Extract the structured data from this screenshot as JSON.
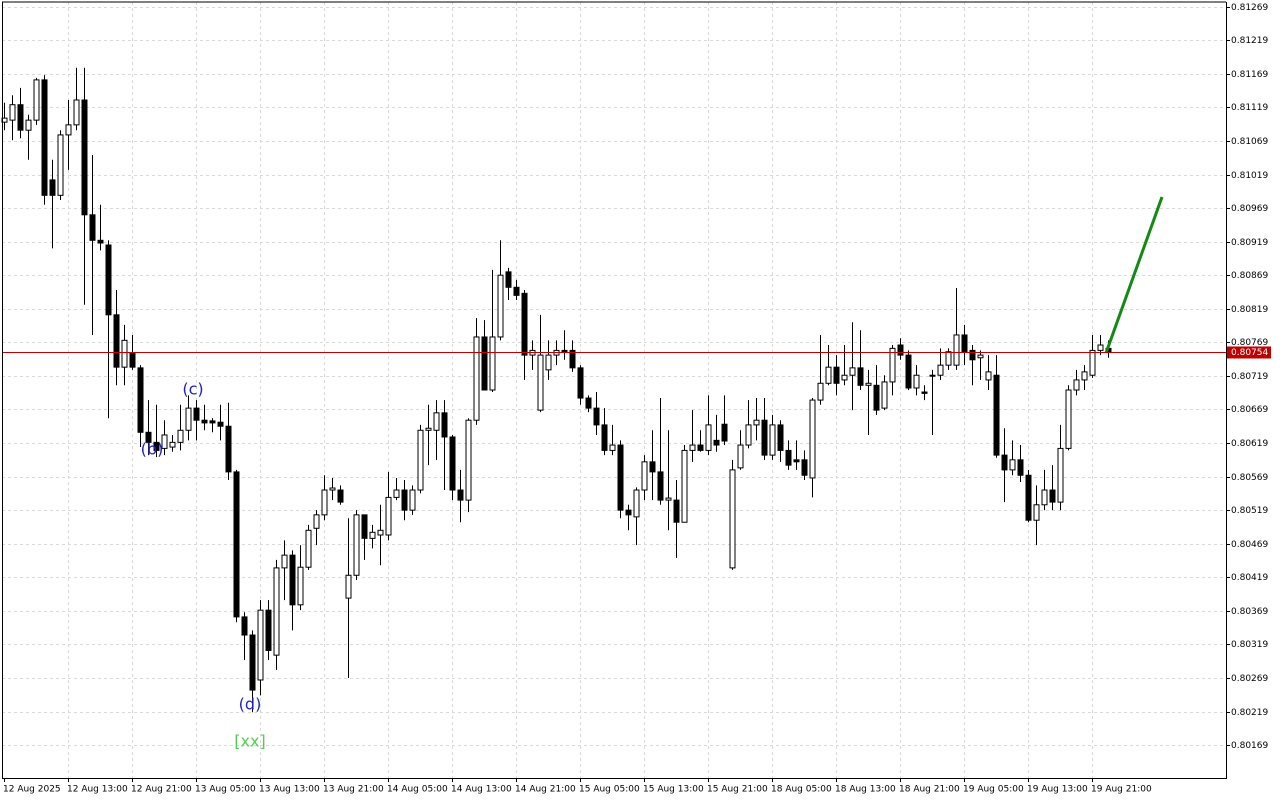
{
  "chart_data": {
    "type": "candlestick",
    "categories": [
      "12 Aug 2025",
      null,
      null,
      null,
      null,
      null,
      null,
      null,
      "12 Aug 13:00",
      null,
      null,
      null,
      null,
      null,
      null,
      null,
      "12 Aug 21:00",
      null,
      null,
      null,
      null,
      null,
      null,
      null,
      "13 Aug 05:00",
      null,
      null,
      null,
      null,
      null,
      null,
      null,
      "13 Aug 13:00",
      null,
      null,
      null,
      null,
      null,
      null,
      null,
      "13 Aug 21:00",
      null,
      null,
      null,
      null,
      null,
      null,
      null,
      "14 Aug 05:00",
      null,
      null,
      null,
      null,
      null,
      null,
      null,
      "14 Aug 13:00",
      null,
      null,
      null,
      null,
      null,
      null,
      null,
      "14 Aug 21:00",
      null,
      null,
      null,
      null,
      null,
      null,
      null,
      "15 Aug 05:00",
      null,
      null,
      null,
      null,
      null,
      null,
      null,
      "15 Aug 13:00",
      null,
      null,
      null,
      null,
      null,
      null,
      null,
      "15 Aug 21:00",
      null,
      null,
      null,
      null,
      null,
      null,
      null,
      "18 Aug 05:00",
      null,
      null,
      null,
      null,
      null,
      null,
      null,
      "18 Aug 13:00",
      null,
      null,
      null,
      null,
      null,
      null,
      null,
      "18 Aug 21:00",
      null,
      null,
      null,
      null,
      null,
      null,
      null,
      "19 Aug 05:00",
      null,
      null,
      null,
      null,
      null,
      null,
      null,
      "19 Aug 13:00",
      null,
      null,
      null,
      null,
      null,
      null,
      null,
      "19 Aug 21:00",
      null,
      null
    ],
    "open": [
      0.81097,
      0.811,
      0.81123,
      0.81085,
      0.811,
      0.8116,
      0.81011,
      0.80988,
      0.81078,
      0.81093,
      0.8113,
      0.80959,
      0.80921,
      0.80914,
      0.8081,
      0.80732,
      0.80753,
      0.80731,
      0.80635,
      0.8062,
      0.80611,
      0.80613,
      0.8062,
      0.80638,
      0.80671,
      0.80653,
      0.80652,
      0.8065,
      0.80644,
      0.80576,
      0.8036,
      0.80333,
      0.80266,
      0.8037,
      0.80303,
      0.80433,
      0.80452,
      0.80378,
      0.80434,
      0.80492,
      0.80512,
      0.80549,
      0.80549,
      0.80388,
      0.80422,
      0.80512,
      0.80477,
      0.80482,
      0.80482,
      0.80538,
      0.80549,
      0.80519,
      0.80549,
      0.80638,
      0.80638,
      0.80664,
      0.80628,
      0.80549,
      0.80534,
      0.80653,
      0.80777,
      0.80698,
      0.80777,
      0.80874,
      0.80851,
      0.80842,
      0.8075,
      0.80668,
      0.80728,
      0.8075,
      0.80757,
      0.80757,
      0.80731,
      0.80686,
      0.80671,
      0.80646,
      0.80608,
      0.80616,
      0.80519,
      0.80509,
      0.80549,
      0.80591,
      0.80576,
      0.80534,
      0.80534,
      0.80501,
      0.80608,
      0.80616,
      0.80608,
      0.80623,
      0.80647,
      0.80433,
      0.80582,
      0.80616,
      0.80646,
      0.80653,
      0.80601,
      0.80646,
      0.80608,
      0.80594,
      0.80594,
      0.80567,
      0.80683,
      0.80708,
      0.80732,
      0.80713,
      0.8072,
      0.80731,
      0.80705,
      0.80705,
      0.80671,
      0.8071,
      0.80765,
      0.8075,
      0.80701,
      0.80695,
      0.8072,
      0.8072,
      0.80735,
      0.80735,
      0.8078,
      0.80757,
      0.80746,
      0.80713,
      0.8072,
      0.80601,
      0.80579,
      0.80594,
      0.80571,
      0.80504,
      0.80527,
      0.80549,
      0.80531,
      0.80611,
      0.80698,
      0.80713,
      0.8072,
      0.80757,
      0.8076
    ],
    "high": [
      0.81126,
      0.81137,
      0.81148,
      0.81108,
      0.81163,
      0.81167,
      0.81041,
      0.81085,
      0.8113,
      0.81178,
      0.81178,
      0.81048,
      0.80974,
      0.80921,
      0.80847,
      0.80795,
      0.8078,
      0.80735,
      0.80683,
      0.80676,
      0.80653,
      0.80631,
      0.80676,
      0.8069,
      0.80683,
      0.80676,
      0.80656,
      0.80676,
      0.80679,
      0.80579,
      0.80367,
      0.8034,
      0.80385,
      0.80385,
      0.80445,
      0.80474,
      0.80459,
      0.80467,
      0.80497,
      0.80519,
      0.80571,
      0.80567,
      0.80556,
      0.80507,
      0.80519,
      0.80512,
      0.80497,
      0.80527,
      0.80576,
      0.80567,
      0.80564,
      0.80556,
      0.80646,
      0.80676,
      0.80683,
      0.80683,
      0.80631,
      0.80579,
      0.80656,
      0.80805,
      0.80802,
      0.80877,
      0.80921,
      0.8088,
      0.80862,
      0.80847,
      0.80772,
      0.8081,
      0.80772,
      0.80772,
      0.80787,
      0.80772,
      0.80735,
      0.8069,
      0.80695,
      0.80671,
      0.80646,
      0.80623,
      0.80527,
      0.80553,
      0.80601,
      0.80638,
      0.80686,
      0.80638,
      0.80564,
      0.80616,
      0.80668,
      0.80638,
      0.8069,
      0.80661,
      0.8069,
      0.80594,
      0.80638,
      0.80683,
      0.80686,
      0.80686,
      0.80661,
      0.80653,
      0.80623,
      0.80623,
      0.80608,
      0.80686,
      0.8078,
      0.80765,
      0.8075,
      0.80765,
      0.80799,
      0.80787,
      0.80728,
      0.80735,
      0.8072,
      0.80765,
      0.80775,
      0.80757,
      0.80735,
      0.80705,
      0.80728,
      0.8076,
      0.8076,
      0.8085,
      0.80795,
      0.80765,
      0.80757,
      0.8075,
      0.8075,
      0.80641,
      0.80623,
      0.80616,
      0.80579,
      0.80556,
      0.80579,
      0.80586,
      0.80646,
      0.80705,
      0.80728,
      0.80735,
      0.8078,
      0.8078,
      0.80772
    ],
    "low": [
      0.81085,
      0.8107,
      0.81073,
      0.81041,
      0.81093,
      0.80974,
      0.80909,
      0.80981,
      0.81026,
      0.81085,
      0.80825,
      0.8078,
      0.80906,
      0.80656,
      0.80705,
      0.80705,
      0.80728,
      0.80613,
      0.80601,
      0.80598,
      0.80601,
      0.80606,
      0.80608,
      0.80623,
      0.80623,
      0.80638,
      0.80635,
      0.80623,
      0.80564,
      0.80352,
      0.80296,
      0.80218,
      0.80243,
      0.80296,
      0.80281,
      0.80385,
      0.8034,
      0.8037,
      0.8043,
      0.80467,
      0.80504,
      0.80534,
      0.80527,
      0.80269,
      0.80415,
      0.80445,
      0.80462,
      0.80437,
      0.80474,
      0.80534,
      0.80504,
      0.80512,
      0.80544,
      0.80586,
      0.80594,
      0.80549,
      0.80534,
      0.80501,
      0.80516,
      0.80646,
      0.80698,
      0.80695,
      0.80772,
      0.80832,
      0.80832,
      0.80713,
      0.80728,
      0.80665,
      0.80713,
      0.80735,
      0.80743,
      0.80725,
      0.80676,
      0.80665,
      0.80631,
      0.80601,
      0.80601,
      0.80507,
      0.80489,
      0.80467,
      0.80534,
      0.80534,
      0.80527,
      0.80489,
      0.80448,
      0.80501,
      0.80591,
      0.80606,
      0.80601,
      0.80606,
      0.80616,
      0.8043,
      0.80579,
      0.80611,
      0.80623,
      0.80594,
      0.80594,
      0.80591,
      0.80579,
      0.80579,
      0.80564,
      0.80538,
      0.80676,
      0.80705,
      0.8069,
      0.80705,
      0.80668,
      0.80698,
      0.80631,
      0.80661,
      0.80668,
      0.8069,
      0.80743,
      0.80698,
      0.8069,
      0.80683,
      0.80631,
      0.80713,
      0.80728,
      0.80728,
      0.80735,
      0.80705,
      0.80713,
      0.80698,
      0.80597,
      0.80531,
      0.80571,
      0.80561,
      0.80501,
      0.80467,
      0.80519,
      0.80519,
      0.80519,
      0.80608,
      0.8069,
      0.80698,
      0.80716,
      0.8075,
      0.80746
    ],
    "close": [
      0.81103,
      0.81123,
      0.81085,
      0.811,
      0.8116,
      0.80988,
      0.80988,
      0.81078,
      0.81093,
      0.8113,
      0.80959,
      0.80921,
      0.80917,
      0.8081,
      0.80732,
      0.80772,
      0.80732,
      0.80635,
      0.8062,
      0.80608,
      0.80631,
      0.8062,
      0.80638,
      0.80671,
      0.80653,
      0.80649,
      0.80649,
      0.80644,
      0.80576,
      0.8036,
      0.80333,
      0.80251,
      0.8037,
      0.8031,
      0.80433,
      0.80452,
      0.80378,
      0.80434,
      0.80489,
      0.80512,
      0.80549,
      0.80552,
      0.80531,
      0.80422,
      0.80512,
      0.80477,
      0.80486,
      0.80489,
      0.80538,
      0.80549,
      0.80519,
      0.80549,
      0.80638,
      0.80641,
      0.80664,
      0.80628,
      0.80549,
      0.80534,
      0.80653,
      0.80777,
      0.80698,
      0.80777,
      0.80869,
      0.80851,
      0.80839,
      0.8075,
      0.80757,
      0.8075,
      0.8075,
      0.80757,
      0.80755,
      0.80731,
      0.80686,
      0.80671,
      0.80646,
      0.80608,
      0.80616,
      0.80519,
      0.80512,
      0.80549,
      0.80591,
      0.80576,
      0.80534,
      0.80537,
      0.80501,
      0.80608,
      0.80616,
      0.80608,
      0.80646,
      0.80616,
      0.80622,
      0.80579,
      0.80616,
      0.80646,
      0.80653,
      0.80601,
      0.80646,
      0.80608,
      0.80586,
      0.80591,
      0.80571,
      0.80683,
      0.80708,
      0.80732,
      0.80708,
      0.8072,
      0.80731,
      0.80705,
      0.80708,
      0.80668,
      0.8071,
      0.8076,
      0.8075,
      0.80701,
      0.8072,
      0.80693,
      0.80719,
      0.80735,
      0.80755,
      0.8078,
      0.80755,
      0.80743,
      0.8075,
      0.80725,
      0.80601,
      0.80579,
      0.80594,
      0.80571,
      0.80504,
      0.80527,
      0.80549,
      0.80531,
      0.80611,
      0.80698,
      0.80713,
      0.80725,
      0.80757,
      0.80765,
      0.80754
    ],
    "bull_color": "#ffffff",
    "bear_color": "#000000",
    "ylim": [
      0.8012,
      0.81276
    ],
    "yticks": [
      0.80169,
      0.80219,
      0.80269,
      0.80319,
      0.80369,
      0.80419,
      0.80469,
      0.80519,
      0.80569,
      0.80619,
      0.80669,
      0.80719,
      0.80769,
      0.80819,
      0.80869,
      0.80919,
      0.80969,
      0.81019,
      0.81069,
      0.81119,
      0.81169,
      0.81219,
      0.81269
    ],
    "grid": true,
    "current_price": 0.80754,
    "current_price_color": "#c00000",
    "annotations": [
      {
        "text": "(b)",
        "color": "#2222cc"
      },
      {
        "text": "(c)",
        "color": "#2222cc"
      },
      {
        "text": "(d)",
        "color": "#2222cc"
      },
      {
        "text": "[xx]",
        "color": "#55cc55"
      }
    ]
  }
}
